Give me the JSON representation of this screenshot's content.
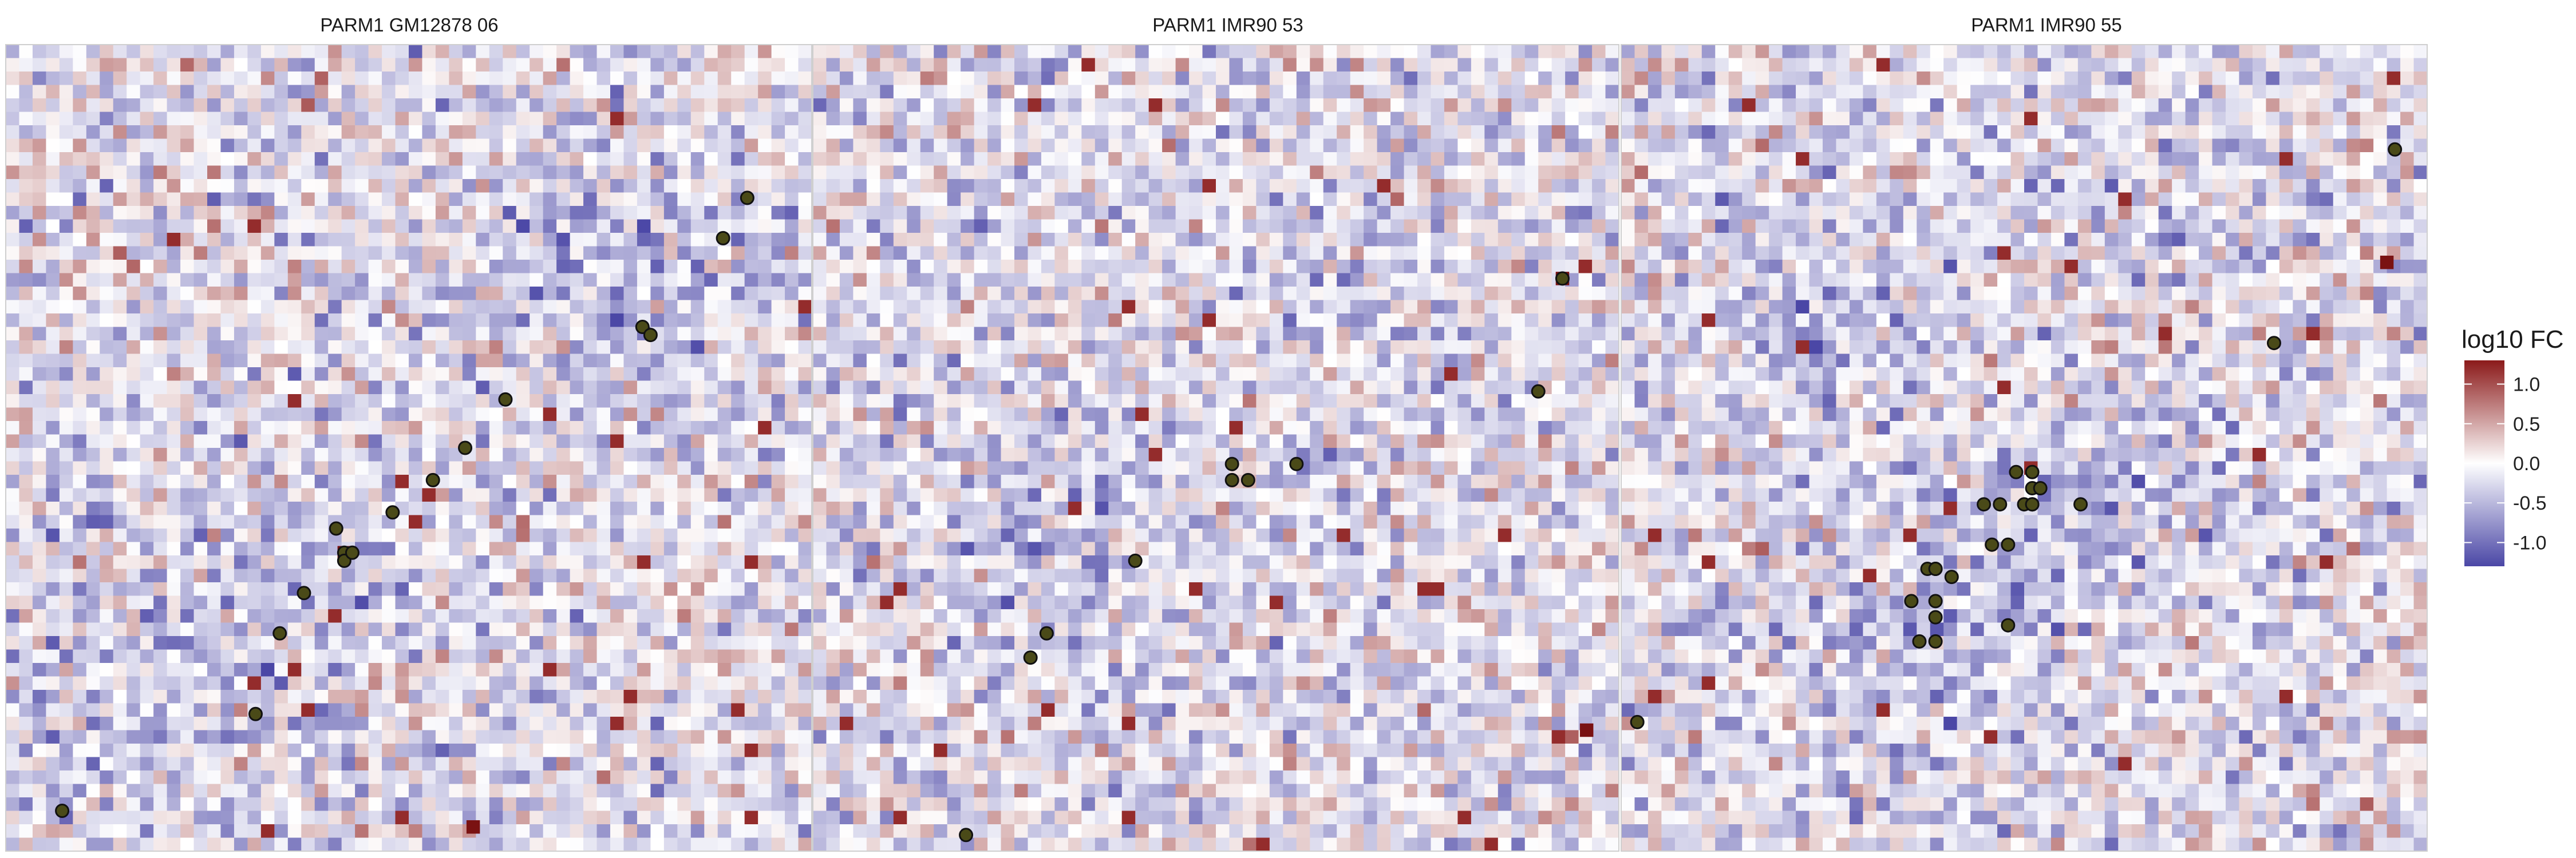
{
  "chart_data": {
    "type": "heatmap",
    "panels": [
      {
        "title": "PARM1 GM12878 06",
        "rows": 60,
        "cols": 60,
        "seed": 11,
        "center_dips": [
          [
            0.75,
            0.3,
            -0.35
          ],
          [
            0.35,
            0.65,
            -0.3
          ],
          [
            0.15,
            0.85,
            -0.25
          ]
        ],
        "points": [
          [
            92,
            19
          ],
          [
            89,
            24
          ],
          [
            79,
            35
          ],
          [
            80,
            36
          ],
          [
            62,
            44
          ],
          [
            57,
            50
          ],
          [
            53,
            54
          ],
          [
            48,
            58
          ],
          [
            42,
            63
          ],
          [
            41,
            60
          ],
          [
            42,
            64
          ],
          [
            43,
            63
          ],
          [
            37,
            68
          ],
          [
            34,
            73
          ],
          [
            31,
            83
          ],
          [
            7,
            95
          ]
        ],
        "highlight_cells": [
          [
            58,
            97
          ],
          [
            42,
            63
          ]
        ]
      },
      {
        "title": "PARM1 IMR90 53",
        "rows": 60,
        "cols": 60,
        "seed": 29,
        "center_dips": [
          [
            0.7,
            0.35,
            -0.25
          ],
          [
            0.3,
            0.6,
            -0.3
          ]
        ],
        "points": [
          [
            93,
            29
          ],
          [
            90,
            43
          ],
          [
            52,
            52
          ],
          [
            52,
            54
          ],
          [
            54,
            54
          ],
          [
            60,
            52
          ],
          [
            40,
            64
          ],
          [
            29,
            73
          ],
          [
            27,
            76
          ],
          [
            19,
            98
          ]
        ],
        "highlight_cells": [
          [
            93,
            29
          ],
          [
            96,
            85
          ]
        ]
      },
      {
        "title": "PARM1 IMR90 55",
        "rows": 60,
        "cols": 60,
        "seed": 47,
        "center_dips": [
          [
            0.25,
            0.35,
            -0.35
          ],
          [
            0.55,
            0.6,
            -0.4
          ],
          [
            0.35,
            0.8,
            -0.3
          ]
        ],
        "points": [
          [
            96,
            13
          ],
          [
            81,
            37
          ],
          [
            49,
            53
          ],
          [
            51,
            53
          ],
          [
            51,
            55
          ],
          [
            52,
            55
          ],
          [
            45,
            57
          ],
          [
            47,
            57
          ],
          [
            51,
            57
          ],
          [
            50,
            57
          ],
          [
            51,
            57
          ],
          [
            57,
            57
          ],
          [
            46,
            62
          ],
          [
            48,
            62
          ],
          [
            39,
            65
          ],
          [
            38,
            65
          ],
          [
            39,
            65
          ],
          [
            36,
            69
          ],
          [
            41,
            66
          ],
          [
            39,
            69
          ],
          [
            39,
            71
          ],
          [
            37,
            74
          ],
          [
            48,
            72
          ],
          [
            39,
            74
          ],
          [
            2,
            84
          ]
        ],
        "highlight_cells": [
          [
            95,
            27
          ]
        ]
      }
    ],
    "value_range": [
      -1.3,
      1.3
    ],
    "palette": {
      "low": "#4b47a6",
      "mid": "#ffffff",
      "high": "#8b1a1a"
    },
    "point_fill": "#4a4a18",
    "legend": {
      "title": "log10 FC",
      "ticks": [
        {
          "value": 1.0,
          "label": "1.0"
        },
        {
          "value": 0.5,
          "label": "0.5"
        },
        {
          "value": 0.0,
          "label": "0.0"
        },
        {
          "value": -0.5,
          "label": "-0.5"
        },
        {
          "value": -1.0,
          "label": "-1.0"
        }
      ],
      "placement": "right"
    },
    "grid": false
  }
}
